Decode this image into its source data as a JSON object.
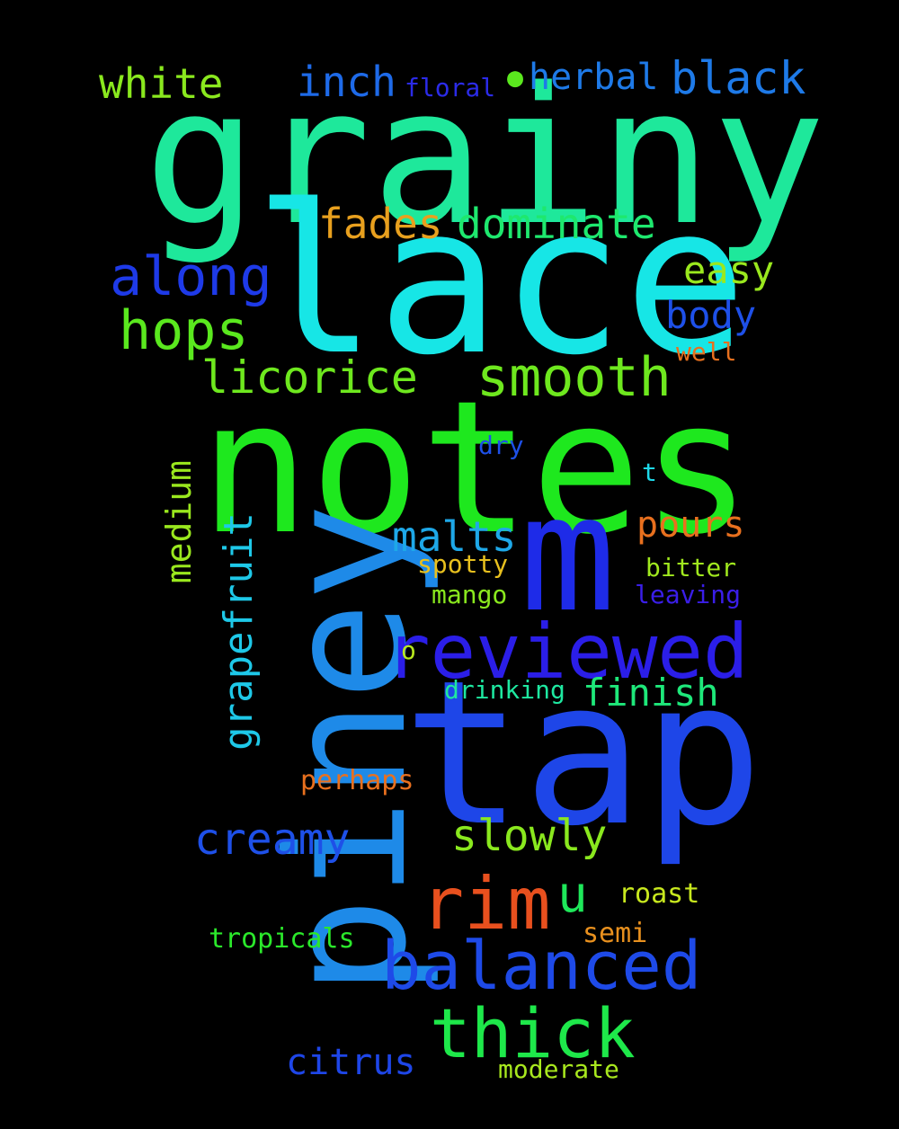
{
  "words": {
    "grainy": {
      "text": "grainy",
      "color": "#1ee89b"
    },
    "lace": {
      "text": "lace",
      "color": "#17e6e6"
    },
    "notes": {
      "text": "notes",
      "color": "#1ee81e"
    },
    "tap": {
      "text": "tap",
      "color": "#1e46e8"
    },
    "piney": {
      "text": "piney",
      "color": "#1e8ae8"
    },
    "m": {
      "text": "m",
      "color": "#1e2be8"
    },
    "reviewed": {
      "text": "reviewed",
      "color": "#2b1ee8"
    },
    "rim": {
      "text": "rim",
      "color": "#e8501e"
    },
    "balanced": {
      "text": "balanced",
      "color": "#1e4ae8"
    },
    "thick": {
      "text": "thick",
      "color": "#1ee84a"
    },
    "hops": {
      "text": "hops",
      "color": "#5ae81e"
    },
    "along": {
      "text": "along",
      "color": "#1e3ae8"
    },
    "smooth": {
      "text": "smooth",
      "color": "#6ee81e"
    },
    "licorice": {
      "text": "licorice",
      "color": "#6ee81e"
    },
    "dominate": {
      "text": "dominate",
      "color": "#1ee86e"
    },
    "fades": {
      "text": "fades",
      "color": "#e8a01e"
    },
    "white": {
      "text": "white",
      "color": "#8ae81e"
    },
    "inch": {
      "text": "inch",
      "color": "#1e6ae8"
    },
    "floral": {
      "text": "floral",
      "color": "#2b2be8"
    },
    "herbal": {
      "text": "herbal",
      "color": "#1e7ae8"
    },
    "black": {
      "text": "black",
      "color": "#1e7ae8"
    },
    "easy": {
      "text": "easy",
      "color": "#9ae81e"
    },
    "body": {
      "text": "body",
      "color": "#1e50e8"
    },
    "well": {
      "text": "well",
      "color": "#e8701e"
    },
    "dry": {
      "text": "dry",
      "color": "#1e50e8"
    },
    "t": {
      "text": "t",
      "color": "#1ed8e8"
    },
    "medium": {
      "text": "medium",
      "color": "#9ae81e"
    },
    "grapefruit": {
      "text": "grapefruit",
      "color": "#1ec8e8"
    },
    "malts": {
      "text": "malts",
      "color": "#1ea8e8"
    },
    "pours": {
      "text": "pours",
      "color": "#e8701e"
    },
    "spotty": {
      "text": "spotty",
      "color": "#e8c01e"
    },
    "bitter": {
      "text": "bitter",
      "color": "#a0e81e"
    },
    "mango": {
      "text": "mango",
      "color": "#8ae81e"
    },
    "leaving": {
      "text": "leaving",
      "color": "#3a1ee8"
    },
    "o": {
      "text": "o",
      "color": "#b8e81e"
    },
    "drinking": {
      "text": "drinking",
      "color": "#1ee8a0"
    },
    "finish": {
      "text": "finish",
      "color": "#1ee87a"
    },
    "perhaps": {
      "text": "perhaps",
      "color": "#e8701e"
    },
    "creamy": {
      "text": "creamy",
      "color": "#1e50e8"
    },
    "slowly": {
      "text": "slowly",
      "color": "#8ae81e"
    },
    "u": {
      "text": "u",
      "color": "#1ee85a"
    },
    "roast": {
      "text": "roast",
      "color": "#c8e81e"
    },
    "semi": {
      "text": "semi",
      "color": "#e8901e"
    },
    "tropicals": {
      "text": "tropicals",
      "color": "#2be82b"
    },
    "citrus": {
      "text": "citrus",
      "color": "#1e46e8"
    },
    "moderate": {
      "text": "moderate",
      "color": "#a8e81e"
    },
    "dot": {
      "text": "●",
      "color": "#5ae81e"
    }
  }
}
